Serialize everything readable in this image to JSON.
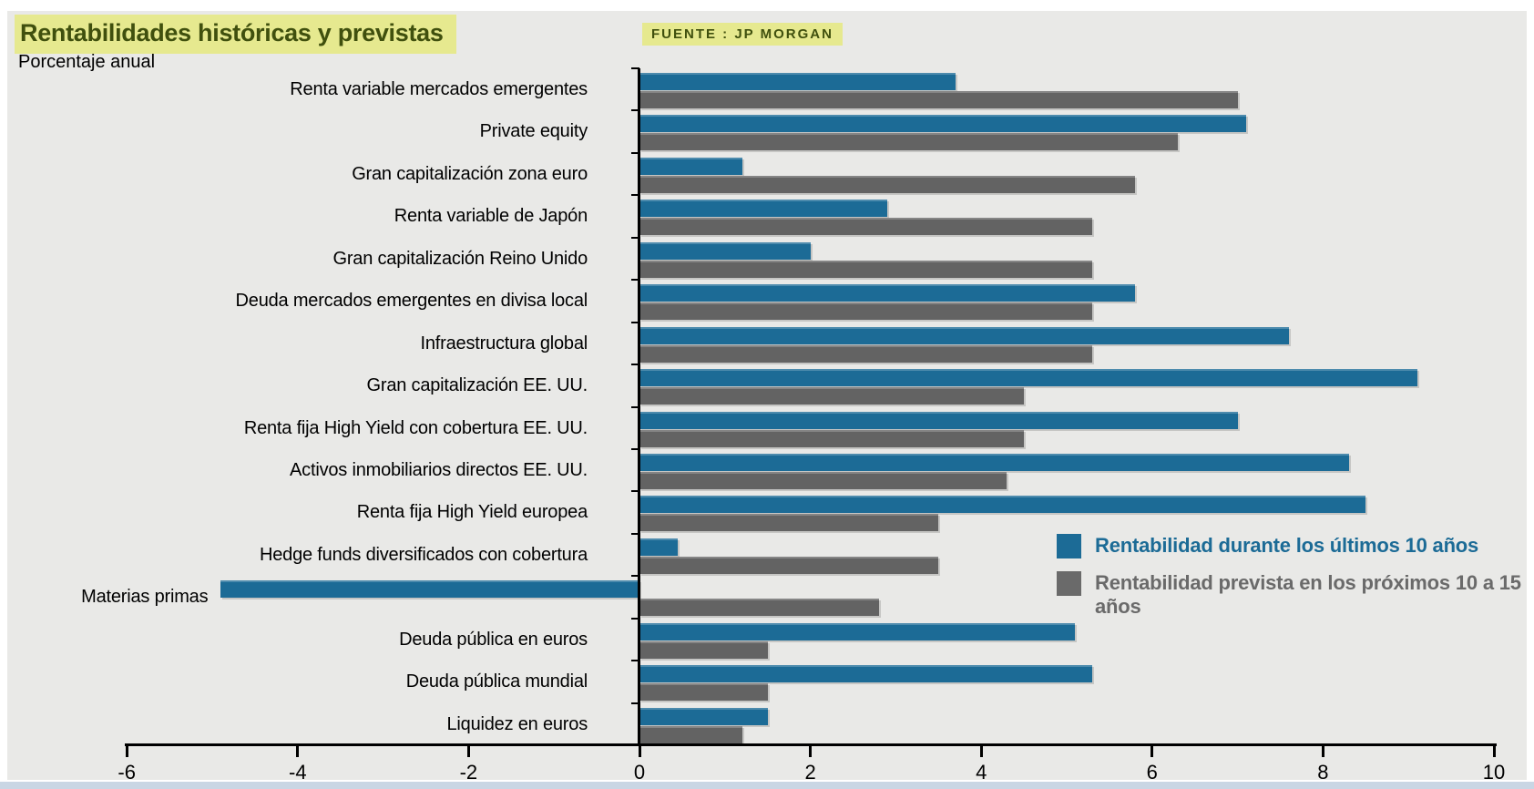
{
  "header": {
    "title": "Rentabilidades históricas y previstas",
    "source": "FUENTE : JP MORGAN",
    "subtitle": "Porcentaje anual"
  },
  "legend": {
    "historical": "Rentabilidad durante los últimos 10 años",
    "forecast": "Rentabilidad prevista en los próximos 10 a 15 años"
  },
  "colors": {
    "historical_bar": "#1c6b96",
    "forecast_bar": "#636363",
    "background": "#e9e9e7",
    "title_highlight": "#e6e98f",
    "title_text": "#40500e",
    "axis": "#000000",
    "bottom_strip": "#c9d6e4"
  },
  "chart_data": {
    "type": "bar",
    "orientation": "horizontal",
    "title": "Rentabilidades históricas y previstas",
    "subtitle": "Porcentaje anual",
    "source": "FUENTE : JP MORGAN",
    "xlim": [
      -6,
      10
    ],
    "x_ticks": [
      -6,
      -4,
      -2,
      0,
      2,
      4,
      6,
      8,
      10
    ],
    "grid": false,
    "legend_position": "middle-right",
    "categories": [
      "Renta variable mercados emergentes",
      "Private equity",
      "Gran capitalización zona euro",
      "Renta variable de Japón",
      "Gran capitalización Reino Unido",
      "Deuda mercados emergentes en divisa local",
      "Infraestructura global",
      "Gran capitalización EE. UU.",
      "Renta fija High Yield con cobertura EE. UU.",
      "Activos inmobiliarios directos EE. UU.",
      "Renta fija High Yield europea",
      "Hedge funds diversificados con cobertura",
      "Materias primas",
      "Deuda pública en euros",
      "Deuda pública mundial",
      "Liquidez en euros"
    ],
    "series": [
      {
        "name": "Rentabilidad durante los últimos 10 años",
        "color": "#1c6b96",
        "values": [
          3.7,
          7.1,
          1.2,
          2.9,
          2.0,
          5.8,
          7.6,
          9.1,
          7.0,
          8.3,
          8.5,
          0.45,
          -4.9,
          5.1,
          5.3,
          1.5
        ]
      },
      {
        "name": "Rentabilidad prevista en los próximos 10 a 15 años",
        "color": "#636363",
        "values": [
          7.0,
          6.3,
          5.8,
          5.3,
          5.3,
          5.3,
          5.3,
          4.5,
          4.5,
          4.3,
          3.5,
          3.5,
          2.8,
          1.5,
          1.5,
          1.2
        ]
      }
    ]
  }
}
